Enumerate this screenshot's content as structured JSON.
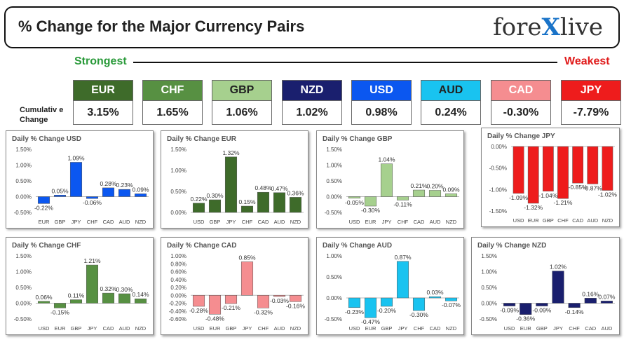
{
  "header": {
    "title": "% Change for the Major Currency Pairs",
    "logo_left": "fore",
    "logo_x": "X",
    "logo_right": "live"
  },
  "strength": {
    "strongest_label": "Strongest",
    "weakest_label": "Weakest",
    "cumulative_label_line1": "Cumulativ e",
    "cumulative_label_line2": "Change",
    "currencies": [
      {
        "code": "EUR",
        "value": "3.15%",
        "color": "#3e6b2a",
        "text": "#ffffff"
      },
      {
        "code": "CHF",
        "value": "1.65%",
        "color": "#579042",
        "text": "#ffffff"
      },
      {
        "code": "GBP",
        "value": "1.06%",
        "color": "#a6d08e",
        "text": "#222222"
      },
      {
        "code": "NZD",
        "value": "1.02%",
        "color": "#1a1f6e",
        "text": "#ffffff"
      },
      {
        "code": "USD",
        "value": "0.98%",
        "color": "#0b57f0",
        "text": "#ffffff"
      },
      {
        "code": "AUD",
        "value": "0.24%",
        "color": "#19c3f0",
        "text": "#222222"
      },
      {
        "code": "CAD",
        "value": "-0.30%",
        "color": "#f58d90",
        "text": "#ffffff"
      },
      {
        "code": "JPY",
        "value": "-7.79%",
        "color": "#ee1c1c",
        "text": "#ffffff"
      }
    ]
  },
  "chart_data": [
    {
      "type": "bar",
      "title": "Daily % Change USD",
      "categories": [
        "EUR",
        "GBP",
        "JPY",
        "CHF",
        "CAD",
        "AUD",
        "NZD"
      ],
      "values": [
        -0.22,
        0.05,
        1.09,
        -0.06,
        0.28,
        0.23,
        0.09
      ],
      "labels": [
        "-0.22%",
        "0.05%",
        "1.09%",
        "-0.06%",
        "0.28%",
        "0.23%",
        "0.09%"
      ],
      "yticks": [
        "1.50%",
        "1.00%",
        "0.50%",
        "0.00%",
        "-0.50%"
      ],
      "ylim": [
        -0.5,
        1.5
      ],
      "color": "#0b57f0"
    },
    {
      "type": "bar",
      "title": "Daily % Change EUR",
      "categories": [
        "USD",
        "GBP",
        "JPY",
        "CHF",
        "CAD",
        "AUD",
        "NZD"
      ],
      "values": [
        0.22,
        0.3,
        1.32,
        0.15,
        0.48,
        0.47,
        0.36
      ],
      "labels": [
        "0.22%",
        "0.30%",
        "1.32%",
        "0.15%",
        "0.48%",
        "0.47%",
        "0.36%"
      ],
      "yticks": [
        "1.50%",
        "1.00%",
        "0.50%",
        "0.00%"
      ],
      "ylim": [
        0,
        1.5
      ],
      "color": "#3e6b2a"
    },
    {
      "type": "bar",
      "title": "Daily % Change GBP",
      "categories": [
        "USD",
        "EUR",
        "JPY",
        "CHF",
        "CAD",
        "AUD",
        "NZD"
      ],
      "values": [
        -0.05,
        -0.3,
        1.04,
        -0.11,
        0.21,
        0.2,
        0.09
      ],
      "labels": [
        "-0.05%",
        "-0.30%",
        "1.04%",
        "-0.11%",
        "0.21%",
        "0.20%",
        "0.09%"
      ],
      "yticks": [
        "1.50%",
        "1.00%",
        "0.50%",
        "0.00%",
        "-0.50%"
      ],
      "ylim": [
        -0.5,
        1.5
      ],
      "color": "#a6d08e"
    },
    {
      "type": "bar",
      "title": "Daily % Change JPY",
      "categories": [
        "USD",
        "EUR",
        "GBP",
        "CHF",
        "CAD",
        "AUD",
        "NZD"
      ],
      "values": [
        -1.09,
        -1.32,
        -1.04,
        -1.21,
        -0.85,
        -0.87,
        -1.02
      ],
      "labels": [
        "-1.09%",
        "-1.32%",
        "-1.04%",
        "-1.21%",
        "-0.85%",
        "-0.87%",
        "-1.02%"
      ],
      "yticks": [
        "0.00%",
        "-0.50%",
        "-1.00%",
        "-1.50%"
      ],
      "ylim": [
        -1.5,
        0
      ],
      "color": "#ee1c1c"
    },
    {
      "type": "bar",
      "title": "Daily % Change CHF",
      "categories": [
        "USD",
        "EUR",
        "GBP",
        "JPY",
        "CAD",
        "AUD",
        "NZD"
      ],
      "values": [
        0.06,
        -0.15,
        0.11,
        1.21,
        0.32,
        0.3,
        0.14
      ],
      "labels": [
        "0.06%",
        "-0.15%",
        "0.11%",
        "1.21%",
        "0.32%",
        "0.30%",
        "0.14%"
      ],
      "yticks": [
        "1.50%",
        "1.00%",
        "0.50%",
        "0.00%",
        "-0.50%"
      ],
      "ylim": [
        -0.5,
        1.5
      ],
      "color": "#579042"
    },
    {
      "type": "bar",
      "title": "Daily % Change CAD",
      "categories": [
        "USD",
        "EUR",
        "GBP",
        "JPY",
        "CHF",
        "AUD",
        "NZD"
      ],
      "values": [
        -0.28,
        -0.48,
        -0.21,
        0.85,
        -0.32,
        -0.03,
        -0.16
      ],
      "labels": [
        "-0.28%",
        "-0.48%",
        "-0.21%",
        "0.85%",
        "-0.32%",
        "-0.03%",
        "-0.16%"
      ],
      "yticks": [
        "1.00%",
        "0.80%",
        "0.60%",
        "0.40%",
        "0.20%",
        "0.00%",
        "-0.20%",
        "-0.40%",
        "-0.60%"
      ],
      "ylim": [
        -0.6,
        1.0
      ],
      "color": "#f58d90"
    },
    {
      "type": "bar",
      "title": "Daily % Change AUD",
      "categories": [
        "USD",
        "EUR",
        "GBP",
        "JPY",
        "CHF",
        "CAD",
        "NZD"
      ],
      "values": [
        -0.23,
        -0.47,
        -0.2,
        0.87,
        -0.3,
        0.03,
        -0.07
      ],
      "labels": [
        "-0.23%",
        "-0.47%",
        "-0.20%",
        "0.87%",
        "-0.30%",
        "0.03%",
        "-0.07%"
      ],
      "yticks": [
        "1.00%",
        "0.50%",
        "0.00%",
        "-0.50%"
      ],
      "ylim": [
        -0.5,
        1.0
      ],
      "color": "#19c3f0"
    },
    {
      "type": "bar",
      "title": "Daily % Change NZD",
      "categories": [
        "USD",
        "EUR",
        "GBP",
        "JPY",
        "CHF",
        "CAD",
        "AUD"
      ],
      "values": [
        -0.09,
        -0.36,
        -0.09,
        1.02,
        -0.14,
        0.16,
        0.07
      ],
      "labels": [
        "-0.09%",
        "-0.36%",
        "-0.09%",
        "1.02%",
        "-0.14%",
        "0.16%",
        "0.07%"
      ],
      "yticks": [
        "1.50%",
        "1.00%",
        "0.50%",
        "0.00%",
        "-0.50%"
      ],
      "ylim": [
        -0.5,
        1.5
      ],
      "color": "#1a1f6e"
    }
  ]
}
